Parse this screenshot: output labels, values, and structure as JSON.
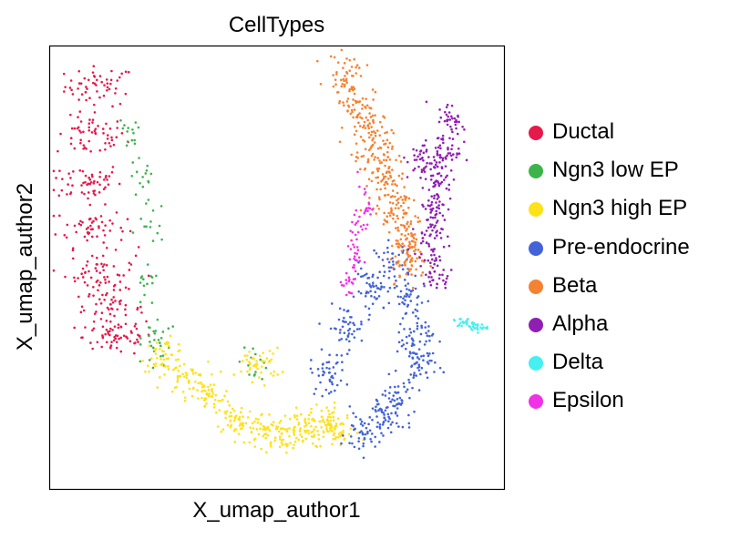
{
  "chart_data": {
    "type": "scatter",
    "title": "CellTypes",
    "xlabel": "X_umap_author1",
    "ylabel": "X_umap_author2",
    "ticks": false,
    "grid": false,
    "legend_placement": "right",
    "xlim": [
      0,
      100
    ],
    "ylim": [
      0,
      100
    ],
    "series": [
      {
        "name": "Ductal",
        "color": "#E6194B",
        "spread": [
          5.5,
          3.2
        ],
        "per_center": 55,
        "centers": [
          [
            11.2,
            90.8
          ],
          [
            9.2,
            79.5
          ],
          [
            8.2,
            69.3
          ],
          [
            9.2,
            59
          ],
          [
            11.2,
            48.7
          ],
          [
            13.2,
            40.5
          ],
          [
            15.2,
            34.3
          ]
        ]
      },
      {
        "name": "Ngn3 low EP",
        "color": "#3CB44B",
        "spread": [
          2.2,
          3.5
        ],
        "per_center": 14,
        "centers": [
          [
            17.2,
            79.5
          ],
          [
            20.5,
            70
          ],
          [
            22.5,
            60
          ],
          [
            21.2,
            44.6
          ],
          [
            23.5,
            35
          ],
          [
            24.5,
            31.5
          ],
          [
            45.3,
            29.2
          ]
        ]
      },
      {
        "name": "Ngn3 high EP",
        "color": "#FFE119",
        "spread": [
          3.5,
          2.6
        ],
        "per_center": 45,
        "centers": [
          [
            25.2,
            30.2
          ],
          [
            30,
            25
          ],
          [
            35,
            20.5
          ],
          [
            41.3,
            15.8
          ],
          [
            47,
            13.5
          ],
          [
            51.3,
            11.7
          ],
          [
            56,
            13
          ],
          [
            59.3,
            15.8
          ],
          [
            63.5,
            12.7
          ],
          [
            46.1,
            28.1
          ]
        ]
      },
      {
        "name": "Pre-endocrine",
        "color": "#4363D8",
        "spread": [
          2.8,
          3.5
        ],
        "per_center": 45,
        "centers": [
          [
            61.3,
            26.1
          ],
          [
            65.3,
            36.3
          ],
          [
            71.3,
            44.6
          ],
          [
            75.4,
            50.7
          ],
          [
            79.4,
            42.5
          ],
          [
            80.5,
            34
          ],
          [
            81.4,
            28.1
          ],
          [
            77,
            20
          ],
          [
            73.3,
            15.8
          ],
          [
            69,
            12.5
          ]
        ]
      },
      {
        "name": "Beta",
        "color": "#F58231",
        "spread": [
          3,
          3
        ],
        "per_center": 45,
        "centers": [
          [
            65.3,
            93.8
          ],
          [
            67.3,
            87
          ],
          [
            69.3,
            81.5
          ],
          [
            71.5,
            76
          ],
          [
            73.3,
            71.3
          ],
          [
            75.5,
            66
          ],
          [
            77.4,
            61
          ],
          [
            78.5,
            56
          ],
          [
            79.4,
            50.7
          ]
        ]
      },
      {
        "name": "Alpha",
        "color": "#911EB4",
        "spread": [
          2.3,
          3.2
        ],
        "per_center": 40,
        "centers": [
          [
            88.4,
            82.6
          ],
          [
            87.4,
            76
          ],
          [
            85.4,
            69.3
          ],
          [
            84.4,
            63
          ],
          [
            83.4,
            57
          ],
          [
            85.4,
            48.7
          ],
          [
            82,
            74
          ]
        ]
      },
      {
        "name": "Delta",
        "color": "#46F0F0",
        "spread": [
          1.6,
          0.8
        ],
        "per_center": 20,
        "centers": [
          [
            91,
            37.4
          ],
          [
            94,
            36.5
          ]
        ]
      },
      {
        "name": "Epsilon",
        "color": "#F032E6",
        "spread": [
          1.2,
          3
        ],
        "per_center": 18,
        "centers": [
          [
            69.5,
            64
          ],
          [
            68,
            58
          ],
          [
            67,
            52
          ],
          [
            65.8,
            46.4
          ]
        ]
      }
    ]
  }
}
